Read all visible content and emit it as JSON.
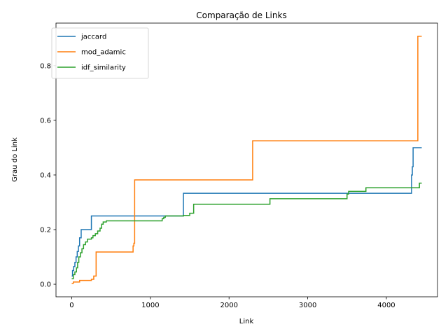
{
  "chart_data": {
    "type": "line",
    "title": "Comparação de Links",
    "xlabel": "Link",
    "ylabel": "Grau do Link",
    "xlim": [
      -200,
      4650
    ],
    "ylim": [
      -0.046,
      0.956
    ],
    "xticks": [
      0,
      1000,
      2000,
      3000,
      4000
    ],
    "xtick_labels": [
      "0",
      "1000",
      "2000",
      "3000",
      "4000"
    ],
    "yticks": [
      0.0,
      0.2,
      0.4,
      0.6,
      0.8
    ],
    "ytick_labels": [
      "0.0",
      "0.2",
      "0.4",
      "0.6",
      "0.8"
    ],
    "grid": false,
    "legend_position": "upper-left",
    "series": [
      {
        "name": "jaccard",
        "color": "#1f77b4",
        "step": true,
        "x": [
          0,
          10,
          25,
          40,
          55,
          70,
          85,
          100,
          120,
          250,
          1420,
          4320,
          4330,
          4340,
          4450
        ],
        "y": [
          0.03,
          0.05,
          0.065,
          0.08,
          0.1,
          0.12,
          0.14,
          0.17,
          0.2,
          0.25,
          0.333,
          0.4,
          0.43,
          0.5,
          0.5
        ]
      },
      {
        "name": "mod_adamic",
        "color": "#ff7f0e",
        "step": true,
        "x": [
          0,
          20,
          100,
          250,
          280,
          310,
          780,
          790,
          800,
          2300,
          4400,
          4450
        ],
        "y": [
          0.003,
          0.008,
          0.014,
          0.018,
          0.03,
          0.118,
          0.14,
          0.15,
          0.382,
          0.525,
          0.908,
          0.908
        ]
      },
      {
        "name": "idf_similarity",
        "color": "#2ca02c",
        "step": true,
        "x": [
          0,
          20,
          40,
          60,
          75,
          90,
          110,
          130,
          150,
          175,
          200,
          250,
          270,
          300,
          330,
          360,
          380,
          400,
          440,
          1150,
          1170,
          1190,
          1420,
          1500,
          1550,
          2520,
          3500,
          3520,
          3740,
          4420,
          4450
        ],
        "y": [
          0.02,
          0.035,
          0.045,
          0.06,
          0.08,
          0.1,
          0.115,
          0.13,
          0.145,
          0.155,
          0.165,
          0.17,
          0.178,
          0.185,
          0.195,
          0.205,
          0.22,
          0.228,
          0.232,
          0.24,
          0.245,
          0.25,
          0.252,
          0.26,
          0.293,
          0.313,
          0.33,
          0.34,
          0.353,
          0.37,
          0.37
        ]
      }
    ]
  }
}
